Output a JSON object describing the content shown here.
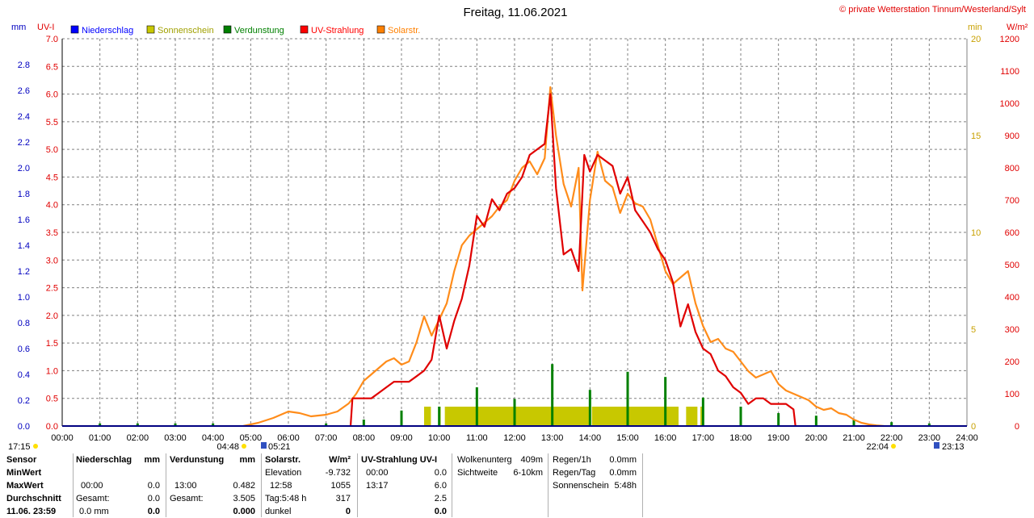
{
  "title": "Freitag, 11.06.2021",
  "copyright": "© private Wetterstation Tinnum/Westerland/Sylt",
  "units": {
    "mm": "mm",
    "uvi": "UV-I",
    "min": "min",
    "wm2": "W/m²"
  },
  "legend": [
    {
      "label": "Niederschlag",
      "color": "#0000ff"
    },
    {
      "label": "Sonnenschein",
      "color": "#c8c800"
    },
    {
      "label": "Verdunstung",
      "color": "#008000"
    },
    {
      "label": "UV-Strahlung",
      "color": "#ff0000"
    },
    {
      "label": "Solarstr.",
      "color": "#ff8000"
    }
  ],
  "colors": {
    "uv": "#e00000",
    "solar": "#ff8c1a",
    "sun": "#c8c800",
    "evap": "#008000",
    "rain": "#0000ff",
    "grid": "#808080"
  },
  "sun_events": {
    "sunrise_dawn": "04:48",
    "sunrise": "05:21",
    "sunset": "22:04",
    "dusk": "23:13",
    "prev": "17:15"
  },
  "chart_data": {
    "type": "line",
    "title": "Freitag, 11.06.2021",
    "xlim": [
      0,
      24
    ],
    "x_ticks": [
      "00:00",
      "01:00",
      "02:00",
      "03:00",
      "04:00",
      "05:00",
      "06:00",
      "07:00",
      "08:00",
      "09:00",
      "10:00",
      "11:00",
      "12:00",
      "13:00",
      "14:00",
      "15:00",
      "16:00",
      "17:00",
      "18:00",
      "19:00",
      "20:00",
      "21:00",
      "22:00",
      "23:00",
      "24:00"
    ],
    "axes": {
      "mm": {
        "range": [
          0,
          3
        ],
        "ticks": [
          "2.8",
          "2.6",
          "2.4",
          "2.2",
          "2.0",
          "1.8",
          "1.6",
          "1.4",
          "1.2",
          "1.0",
          "0.8",
          "0.6",
          "0.4",
          "0.2",
          "0.0"
        ]
      },
      "uvi": {
        "range": [
          0,
          7
        ],
        "ticks": [
          "7.0",
          "6.5",
          "6.0",
          "5.5",
          "5.0",
          "4.5",
          "4.0",
          "3.5",
          "3.0",
          "2.5",
          "2.0",
          "1.5",
          "1.0",
          "0.5",
          "0.0"
        ]
      },
      "min": {
        "range": [
          0,
          20
        ],
        "ticks": [
          "20",
          "15",
          "10",
          "5",
          "0"
        ]
      },
      "wm2": {
        "range": [
          0,
          1200
        ],
        "ticks": [
          "1200",
          "1100",
          "1000",
          "900",
          "800",
          "700",
          "600",
          "500",
          "400",
          "300",
          "200",
          "100",
          "0"
        ]
      }
    },
    "series": [
      {
        "name": "Solarstr.",
        "axis": "wm2",
        "x": [
          4.8,
          5.2,
          5.6,
          6.0,
          6.3,
          6.6,
          7.0,
          7.3,
          7.6,
          7.8,
          8.0,
          8.2,
          8.4,
          8.6,
          8.8,
          9.0,
          9.2,
          9.4,
          9.5,
          9.6,
          9.7,
          9.8,
          10.0,
          10.2,
          10.4,
          10.6,
          10.8,
          11.0,
          11.2,
          11.4,
          11.6,
          11.8,
          12.0,
          12.2,
          12.4,
          12.6,
          12.8,
          12.95,
          13.1,
          13.3,
          13.5,
          13.7,
          13.8,
          14.0,
          14.2,
          14.4,
          14.6,
          14.8,
          15.0,
          15.2,
          15.4,
          15.6,
          15.8,
          16.0,
          16.2,
          16.4,
          16.6,
          16.8,
          17.0,
          17.2,
          17.4,
          17.6,
          17.8,
          18.0,
          18.2,
          18.4,
          18.6,
          18.8,
          19.0,
          19.2,
          19.4,
          19.6,
          19.8,
          20.0,
          20.2,
          20.4,
          20.6,
          20.8,
          21.0,
          21.2,
          21.4,
          21.6,
          21.8
        ],
        "values": [
          0,
          10,
          25,
          45,
          40,
          30,
          35,
          45,
          70,
          100,
          140,
          160,
          180,
          200,
          210,
          190,
          200,
          260,
          300,
          340,
          310,
          280,
          330,
          380,
          480,
          560,
          590,
          610,
          630,
          650,
          680,
          700,
          760,
          800,
          820,
          780,
          830,
          1050,
          900,
          750,
          680,
          800,
          420,
          700,
          850,
          760,
          740,
          660,
          720,
          690,
          680,
          640,
          560,
          480,
          440,
          460,
          480,
          380,
          310,
          260,
          270,
          240,
          230,
          200,
          170,
          150,
          160,
          170,
          130,
          110,
          100,
          90,
          80,
          60,
          50,
          55,
          40,
          35,
          20,
          10,
          5,
          2,
          0
        ]
      },
      {
        "name": "UV-Strahlung",
        "axis": "uvi",
        "x": [
          7.65,
          7.7,
          8.0,
          8.2,
          8.4,
          8.6,
          8.8,
          9.0,
          9.2,
          9.4,
          9.6,
          9.8,
          10.0,
          10.2,
          10.4,
          10.6,
          10.8,
          11.0,
          11.2,
          11.4,
          11.6,
          11.8,
          12.0,
          12.2,
          12.4,
          12.6,
          12.8,
          12.95,
          13.1,
          13.3,
          13.5,
          13.7,
          13.85,
          14.0,
          14.2,
          14.4,
          14.6,
          14.8,
          15.0,
          15.2,
          15.4,
          15.6,
          15.8,
          16.0,
          16.2,
          16.4,
          16.6,
          16.8,
          17.0,
          17.2,
          17.4,
          17.6,
          17.8,
          18.0,
          18.2,
          18.4,
          18.6,
          18.8,
          19.0,
          19.2,
          19.4,
          19.45
        ],
        "values": [
          0,
          0.5,
          0.5,
          0.5,
          0.6,
          0.7,
          0.8,
          0.8,
          0.8,
          0.9,
          1.0,
          1.2,
          2.0,
          1.4,
          1.9,
          2.3,
          2.9,
          3.8,
          3.6,
          4.1,
          3.9,
          4.2,
          4.3,
          4.5,
          4.9,
          5.0,
          5.1,
          6.0,
          4.3,
          3.1,
          3.2,
          2.8,
          4.9,
          4.6,
          4.9,
          4.8,
          4.7,
          4.2,
          4.5,
          3.9,
          3.7,
          3.5,
          3.2,
          3.0,
          2.6,
          1.8,
          2.2,
          1.7,
          1.4,
          1.3,
          1.0,
          0.9,
          0.7,
          0.6,
          0.4,
          0.5,
          0.5,
          0.4,
          0.4,
          0.4,
          0.3,
          0
        ]
      },
      {
        "name": "Sonnenschein",
        "axis": "min",
        "bars": [
          [
            9.6,
            9.78
          ],
          [
            9.98,
            10.04
          ],
          [
            10.15,
            14.0
          ],
          [
            14.05,
            16.35
          ],
          [
            16.55,
            16.85
          ],
          [
            16.93,
            17.0
          ]
        ],
        "values": [
          1,
          1,
          1,
          1,
          1,
          1
        ]
      },
      {
        "name": "Verdunstung",
        "axis": "mm",
        "x": [
          1.0,
          2.0,
          3.0,
          4.0,
          7.0,
          8.0,
          9.0,
          10.0,
          11.0,
          12.0,
          13.0,
          14.0,
          15.0,
          16.0,
          17.0,
          18.0,
          19.0,
          20.0,
          21.0,
          22.0,
          23.0
        ],
        "values": [
          0.02,
          0.02,
          0.02,
          0.02,
          0.02,
          0.05,
          0.12,
          0.15,
          0.3,
          0.21,
          0.48,
          0.28,
          0.42,
          0.38,
          0.22,
          0.15,
          0.1,
          0.08,
          0.05,
          0.03,
          0.02
        ]
      },
      {
        "name": "Niederschlag",
        "axis": "mm",
        "x": [],
        "values": []
      }
    ],
    "grid": true
  },
  "panel": {
    "sensor": {
      "h1": "Sensor",
      "r1": "MinWert",
      "r2": "MaxWert",
      "r3": "Durchschnitt",
      "r4": "11.06. 23:59"
    },
    "rain": {
      "h": "Niederschlag",
      "unit": "mm",
      "max_time": "00:00",
      "max_val": "0.0",
      "sum_lbl": "Gesamt:",
      "sum_val": "0.0",
      "cur": "0.0 mm",
      "cur_val": "0.0"
    },
    "evap": {
      "h": "Verdunstung",
      "unit": "mm",
      "max_time": "13:00",
      "max_val": "0.482",
      "sum_lbl": "Gesamt:",
      "sum_val": "3.505",
      "cur_val": "0.000"
    },
    "solar": {
      "h": "Solarstr.",
      "unit": "W/m²",
      "r1l": "Elevation",
      "r1v": "-9.732",
      "r2l": "12:58",
      "r2v": "1055",
      "r3l": "Tag:5:48 h",
      "r3v": "317",
      "r4l": "dunkel",
      "r4v": "0"
    },
    "uv": {
      "h": "UV-Strahlung UV-I",
      "r1l": "00:00",
      "r1v": "0.0",
      "r2l": "13:17",
      "r2v": "6.0",
      "r3v": "2.5",
      "r4v": "0.0"
    },
    "cloud": {
      "r1l": "Wolkenunterg",
      "r1v": "409m",
      "r2l": "Sichtweite",
      "r2v": "6-10km"
    },
    "regen": {
      "r1l": "Regen/1h",
      "r1v": "0.0mm",
      "r2l": "Regen/Tag",
      "r2v": "0.0mm",
      "r3l": "Sonnenschein",
      "r3v": "5:48h"
    }
  }
}
